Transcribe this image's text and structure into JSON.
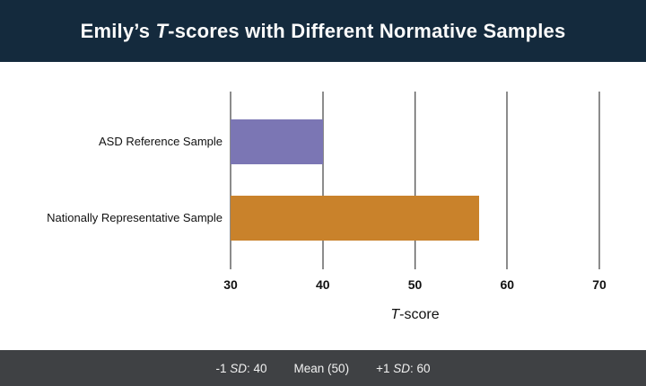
{
  "header": {
    "title_prefix": "Emily’s ",
    "title_italic": "T",
    "title_suffix": "-scores with Different Normative Samples",
    "bg_color": "#142a3d",
    "text_color": "#fbfbfb"
  },
  "chart_data": {
    "type": "bar",
    "orientation": "horizontal",
    "title": "Emily’s T-scores with Different Normative Samples",
    "categories": [
      "ASD Reference Sample",
      "Nationally Representative Sample"
    ],
    "values": [
      40,
      57
    ],
    "bar_colors": [
      "#7b76b4",
      "#c9822b"
    ],
    "bar_base": 30,
    "xlabel_italic": "T",
    "xlabel_suffix": "-score",
    "xlim": [
      30,
      70
    ],
    "ticks": [
      30,
      40,
      50,
      60,
      70
    ],
    "mean_line": 50,
    "gridline_color": "#8c8c8c",
    "mean_line_color": "#1e1e1e",
    "grid": "vertical",
    "legend": "none"
  },
  "footer": {
    "bg_color": "#3f4144",
    "text_color": "#f2f2f2",
    "items": [
      {
        "prefix": "-1 ",
        "italic": "SD",
        "suffix": ": 40"
      },
      {
        "prefix": "Mean (50)",
        "italic": "",
        "suffix": ""
      },
      {
        "prefix": "+1 ",
        "italic": "SD",
        "suffix": ": 60"
      }
    ]
  }
}
